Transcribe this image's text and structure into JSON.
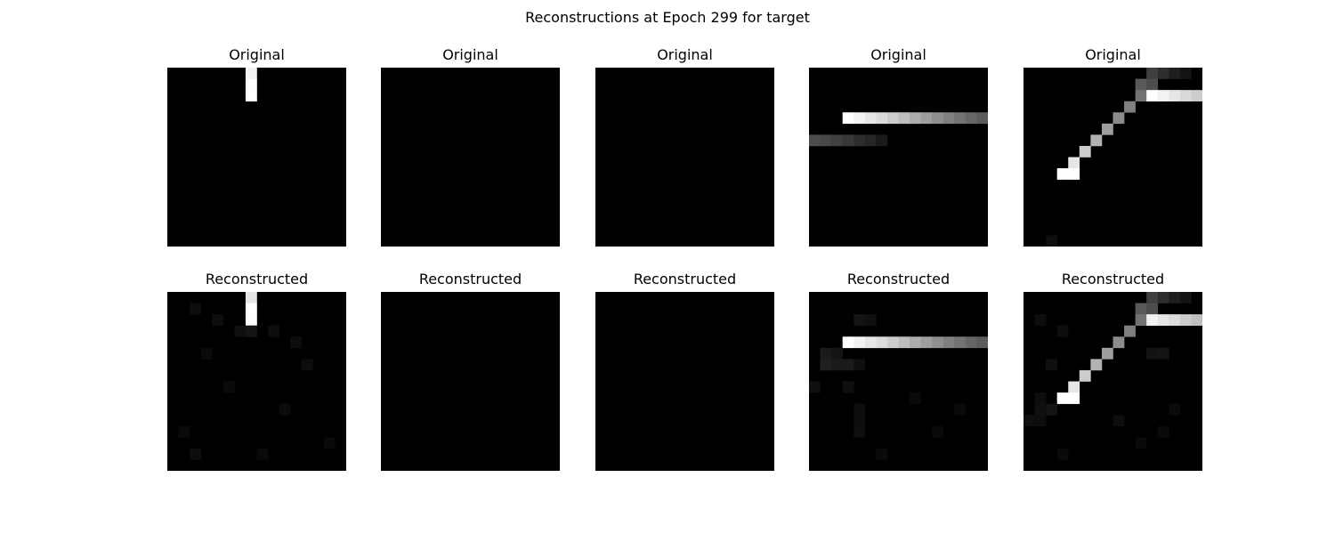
{
  "figure_title": "Reconstructions at Epoch 299 for target",
  "chart_data": [
    {
      "type": "heatmap",
      "title": "Original",
      "row": "top",
      "column": 1,
      "colormap": "gray",
      "grid_size": [
        16,
        16
      ],
      "cells": [
        [
          7,
          0,
          0.95
        ],
        [
          7,
          1,
          1.0
        ],
        [
          7,
          2,
          1.0
        ]
      ]
    },
    {
      "type": "heatmap",
      "title": "Original",
      "row": "top",
      "column": 2,
      "colormap": "gray",
      "grid_size": [
        16,
        16
      ],
      "cells": []
    },
    {
      "type": "heatmap",
      "title": "Original",
      "row": "top",
      "column": 3,
      "colormap": "gray",
      "grid_size": [
        16,
        16
      ],
      "cells": []
    },
    {
      "type": "heatmap",
      "title": "Original",
      "row": "top",
      "column": 4,
      "colormap": "gray",
      "grid_size": [
        16,
        16
      ],
      "cells": [
        [
          3,
          4,
          1.0
        ],
        [
          4,
          4,
          0.95
        ],
        [
          5,
          4,
          0.9
        ],
        [
          6,
          4,
          0.86
        ],
        [
          7,
          4,
          0.8
        ],
        [
          8,
          4,
          0.74
        ],
        [
          9,
          4,
          0.68
        ],
        [
          10,
          4,
          0.62
        ],
        [
          11,
          4,
          0.56
        ],
        [
          12,
          4,
          0.5
        ],
        [
          13,
          4,
          0.45
        ],
        [
          14,
          4,
          0.4
        ],
        [
          15,
          4,
          0.36
        ],
        [
          0,
          6,
          0.3
        ],
        [
          1,
          6,
          0.28
        ],
        [
          2,
          6,
          0.25
        ],
        [
          3,
          6,
          0.22
        ],
        [
          4,
          6,
          0.18
        ],
        [
          5,
          6,
          0.15
        ],
        [
          6,
          6,
          0.1
        ]
      ]
    },
    {
      "type": "heatmap",
      "title": "Original",
      "row": "top",
      "column": 5,
      "colormap": "gray",
      "grid_size": [
        16,
        16
      ],
      "cells": [
        [
          11,
          0,
          0.25
        ],
        [
          12,
          0,
          0.18
        ],
        [
          13,
          0,
          0.12
        ],
        [
          14,
          0,
          0.08
        ],
        [
          10,
          1,
          0.35
        ],
        [
          11,
          1,
          0.3
        ],
        [
          10,
          2,
          0.45
        ],
        [
          11,
          2,
          1.0
        ],
        [
          12,
          2,
          0.95
        ],
        [
          13,
          2,
          0.9
        ],
        [
          14,
          2,
          0.85
        ],
        [
          15,
          2,
          0.8
        ],
        [
          9,
          3,
          0.5
        ],
        [
          8,
          4,
          0.55
        ],
        [
          7,
          5,
          0.62
        ],
        [
          6,
          6,
          0.7
        ],
        [
          5,
          7,
          0.8
        ],
        [
          4,
          8,
          0.9
        ],
        [
          4,
          9,
          1.0
        ],
        [
          3,
          9,
          1.0
        ],
        [
          2,
          15,
          0.05
        ]
      ]
    },
    {
      "type": "heatmap",
      "title": "Reconstructed",
      "row": "bottom",
      "column": 1,
      "colormap": "gray",
      "grid_size": [
        16,
        16
      ],
      "cells": [
        [
          7,
          0,
          0.9
        ],
        [
          7,
          1,
          1.0
        ],
        [
          7,
          2,
          1.0
        ],
        [
          6,
          3,
          0.06
        ],
        [
          7,
          3,
          0.08
        ],
        [
          2,
          1,
          0.05
        ],
        [
          4,
          2,
          0.05
        ],
        [
          9,
          3,
          0.05
        ],
        [
          11,
          4,
          0.05
        ],
        [
          3,
          5,
          0.04
        ],
        [
          12,
          6,
          0.05
        ],
        [
          5,
          8,
          0.04
        ],
        [
          10,
          10,
          0.04
        ],
        [
          1,
          12,
          0.04
        ],
        [
          14,
          13,
          0.04
        ],
        [
          8,
          14,
          0.04
        ],
        [
          2,
          14,
          0.05
        ]
      ]
    },
    {
      "type": "heatmap",
      "title": "Reconstructed",
      "row": "bottom",
      "column": 2,
      "colormap": "gray",
      "grid_size": [
        16,
        16
      ],
      "cells": []
    },
    {
      "type": "heatmap",
      "title": "Reconstructed",
      "row": "bottom",
      "column": 3,
      "colormap": "gray",
      "grid_size": [
        16,
        16
      ],
      "cells": []
    },
    {
      "type": "heatmap",
      "title": "Reconstructed",
      "row": "bottom",
      "column": 4,
      "colormap": "gray",
      "grid_size": [
        16,
        16
      ],
      "cells": [
        [
          3,
          4,
          1.0
        ],
        [
          4,
          4,
          0.95
        ],
        [
          5,
          4,
          0.9
        ],
        [
          6,
          4,
          0.86
        ],
        [
          7,
          4,
          0.8
        ],
        [
          8,
          4,
          0.74
        ],
        [
          9,
          4,
          0.68
        ],
        [
          10,
          4,
          0.62
        ],
        [
          11,
          4,
          0.56
        ],
        [
          12,
          4,
          0.5
        ],
        [
          13,
          4,
          0.45
        ],
        [
          14,
          4,
          0.4
        ],
        [
          15,
          4,
          0.36
        ],
        [
          4,
          2,
          0.08
        ],
        [
          5,
          2,
          0.06
        ],
        [
          1,
          5,
          0.1
        ],
        [
          2,
          5,
          0.08
        ],
        [
          1,
          6,
          0.12
        ],
        [
          2,
          6,
          0.1
        ],
        [
          3,
          6,
          0.1
        ],
        [
          4,
          6,
          0.06
        ],
        [
          0,
          8,
          0.06
        ],
        [
          3,
          8,
          0.06
        ],
        [
          4,
          10,
          0.05
        ],
        [
          4,
          11,
          0.05
        ],
        [
          4,
          12,
          0.06
        ],
        [
          9,
          9,
          0.04
        ],
        [
          13,
          10,
          0.04
        ],
        [
          11,
          12,
          0.04
        ],
        [
          6,
          14,
          0.04
        ]
      ]
    },
    {
      "type": "heatmap",
      "title": "Reconstructed",
      "row": "bottom",
      "column": 5,
      "colormap": "gray",
      "grid_size": [
        16,
        16
      ],
      "cells": [
        [
          11,
          0,
          0.25
        ],
        [
          12,
          0,
          0.18
        ],
        [
          13,
          0,
          0.12
        ],
        [
          14,
          0,
          0.08
        ],
        [
          10,
          1,
          0.35
        ],
        [
          11,
          1,
          0.3
        ],
        [
          10,
          2,
          0.45
        ],
        [
          11,
          2,
          0.95
        ],
        [
          12,
          2,
          0.9
        ],
        [
          13,
          2,
          0.86
        ],
        [
          14,
          2,
          0.8
        ],
        [
          15,
          2,
          0.75
        ],
        [
          9,
          3,
          0.5
        ],
        [
          8,
          4,
          0.55
        ],
        [
          7,
          5,
          0.62
        ],
        [
          6,
          6,
          0.7
        ],
        [
          5,
          7,
          0.8
        ],
        [
          4,
          8,
          0.9
        ],
        [
          4,
          9,
          1.0
        ],
        [
          3,
          9,
          1.0
        ],
        [
          2,
          10,
          0.08
        ],
        [
          1,
          10,
          0.06
        ],
        [
          1,
          9,
          0.05
        ],
        [
          12,
          5,
          0.08
        ],
        [
          11,
          5,
          0.07
        ],
        [
          1,
          2,
          0.05
        ],
        [
          3,
          3,
          0.05
        ],
        [
          2,
          6,
          0.06
        ],
        [
          0,
          11,
          0.06
        ],
        [
          1,
          11,
          0.05
        ],
        [
          8,
          11,
          0.05
        ],
        [
          12,
          12,
          0.04
        ],
        [
          13,
          10,
          0.04
        ],
        [
          3,
          14,
          0.04
        ],
        [
          10,
          13,
          0.04
        ]
      ]
    }
  ]
}
